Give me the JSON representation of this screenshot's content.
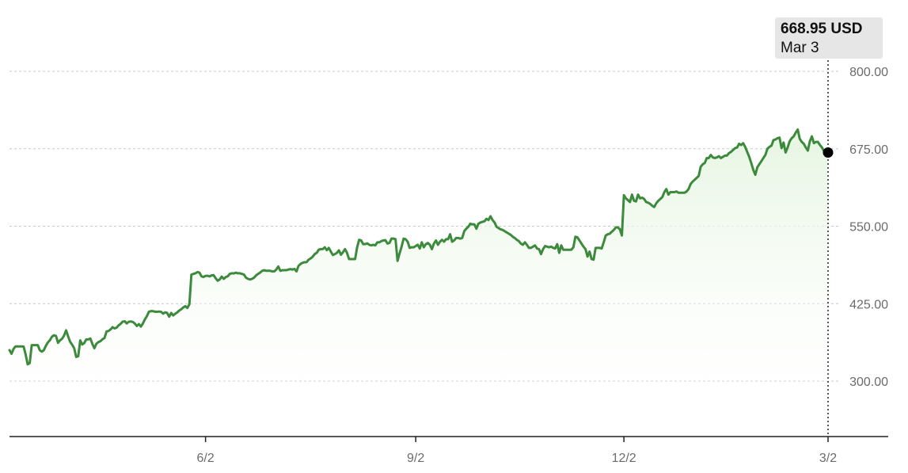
{
  "tooltip": {
    "price": "668.95 USD",
    "date": "Mar 3"
  },
  "colors": {
    "line": "#3c8a3c",
    "fill": "#e9f6e5",
    "grid": "#c8c8c8",
    "marker": "#000000"
  },
  "chart_data": {
    "type": "area",
    "title": "",
    "xlabel": "",
    "ylabel": "",
    "ylim": [
      240,
      840
    ],
    "yticks": [
      300,
      425,
      550,
      675,
      800
    ],
    "ytick_labels": [
      "300.00",
      "425.00",
      "550.00",
      "675.00",
      "800.00"
    ],
    "xticks": [
      {
        "label": "6/2",
        "index": 97
      },
      {
        "label": "9/2",
        "index": 201
      },
      {
        "label": "12/2",
        "index": 304
      },
      {
        "label": "3/2",
        "index": 405
      }
    ],
    "grid": true,
    "legend": "none",
    "highlight": {
      "index": 405,
      "value": 668.95,
      "label": "Mar 3"
    },
    "x": [
      0,
      1,
      2,
      3,
      4,
      5,
      6,
      7,
      8,
      9,
      10,
      11,
      12,
      13,
      14,
      15,
      16,
      17,
      18,
      19,
      20,
      21,
      22,
      23,
      24,
      25,
      26,
      27,
      28,
      29,
      30,
      31,
      32,
      33,
      34,
      35,
      36,
      37,
      38,
      39,
      40,
      41,
      42,
      43,
      44,
      45,
      46,
      47,
      48,
      49,
      50,
      51,
      52,
      53,
      54,
      55,
      56,
      57,
      58,
      59,
      60,
      61,
      62,
      63,
      64,
      65,
      66,
      67,
      68,
      69,
      70,
      71,
      72,
      73,
      74,
      75,
      76,
      77,
      78,
      79,
      80,
      81,
      82,
      83,
      84,
      85,
      86,
      87,
      88,
      89,
      90,
      91,
      92,
      93,
      94,
      95,
      96,
      97,
      98,
      99,
      100,
      101,
      102,
      103,
      104,
      105,
      106,
      107,
      108,
      109,
      110,
      111,
      112,
      113,
      114,
      115,
      116,
      117,
      118,
      119,
      120,
      121,
      122,
      123,
      124,
      125,
      126,
      127,
      128,
      129,
      130,
      131,
      132,
      133,
      134,
      135,
      136,
      137,
      138,
      139,
      140,
      141,
      142,
      143,
      144,
      145,
      146,
      147,
      148,
      149,
      150,
      151,
      152,
      153,
      154,
      155,
      156,
      157,
      158,
      159,
      160,
      161,
      162,
      163,
      164,
      165,
      166,
      167,
      168,
      169,
      170,
      171,
      172,
      173,
      174,
      175,
      176,
      177,
      178,
      179,
      180,
      181,
      182,
      183,
      184,
      185,
      186,
      187,
      188,
      189,
      190,
      191,
      192,
      193,
      194,
      195,
      196,
      197,
      198,
      199,
      200,
      201,
      202,
      203,
      204,
      205,
      206,
      207,
      208,
      209,
      210,
      211,
      212,
      213,
      214,
      215,
      216,
      217,
      218,
      219,
      220,
      221,
      222,
      223,
      224,
      225,
      226,
      227,
      228,
      229,
      230,
      231,
      232,
      233,
      234,
      235,
      236,
      237,
      238,
      239,
      240,
      241,
      242,
      243,
      244,
      245,
      246,
      247,
      248,
      249,
      250,
      251,
      252,
      253,
      254,
      255,
      256,
      257,
      258,
      259,
      260,
      261,
      262,
      263,
      264,
      265,
      266,
      267,
      268,
      269,
      270,
      271,
      272,
      273,
      274,
      275,
      276,
      277,
      278,
      279,
      280,
      281,
      282,
      283,
      284,
      285,
      286,
      287,
      288,
      289,
      290,
      291,
      292,
      293,
      294,
      295,
      296,
      297,
      298,
      299,
      300,
      301,
      302,
      303,
      304,
      305,
      306,
      307,
      308,
      309,
      310,
      311,
      312,
      313,
      314,
      315,
      316,
      317,
      318,
      319,
      320,
      321,
      322,
      323,
      324,
      325,
      326,
      327,
      328,
      329,
      330,
      331,
      332,
      333,
      334,
      335,
      336,
      337,
      338,
      339,
      340,
      341,
      342,
      343,
      344,
      345,
      346,
      347,
      348,
      349,
      350,
      351,
      352,
      353,
      354,
      355,
      356,
      357,
      358,
      359,
      360,
      361,
      362,
      363,
      364,
      365,
      366,
      367,
      368,
      369,
      370,
      371,
      372,
      373,
      374,
      375,
      376,
      377,
      378,
      379,
      380,
      381,
      382,
      383,
      384,
      385,
      386,
      387,
      388,
      389,
      390,
      391,
      392,
      393,
      394,
      395,
      396,
      397,
      398,
      399,
      400,
      401,
      402,
      403,
      404,
      405
    ],
    "series": [
      {
        "values": [
          350.0,
          344.0,
          352.0,
          356.0,
          356.0,
          356.0,
          356.0,
          355.71,
          342.69,
          327.0,
          328.96,
          358.0,
          358.0,
          358.0,
          358.0,
          349.77,
          347.48,
          350.0,
          357.0,
          362.47,
          366.0,
          371.65,
          374.0,
          373.0,
          361.7,
          365.84,
          368.4,
          373.42,
          382.0,
          372.26,
          363.42,
          358.69,
          353.13,
          339.0,
          340.0,
          365.69,
          359.0,
          361.5,
          367.27,
          367.26,
          368.74,
          360.0,
          353.0,
          360.26,
          362.96,
          364.35,
          367.52,
          369.5,
          380.0,
          381.0,
          383.33,
          387.0,
          385.0,
          386.32,
          390.0,
          392.47,
          396.0,
          396.48,
          393.0,
          395.81,
          396.22,
          395.5,
          393.0,
          389.0,
          392.0,
          388.0,
          393.0,
          399.66,
          405.0,
          412.0,
          413.0,
          412.93,
          412.0,
          411.81,
          412.28,
          411.81,
          408.86,
          411.0,
          410.0,
          404.0,
          410.0,
          406.0,
          408.66,
          410.93,
          414.0,
          416.0,
          418.86,
          421.0,
          418.0,
          424.0,
          472.0,
          473.0,
          474.0,
          476.0,
          475.0,
          469.0,
          468.0,
          469.78,
          470.0,
          469.0,
          470.51,
          471.0,
          466.0,
          462.0,
          464.0,
          468.62,
          465.0,
          467.81,
          469.26,
          473.0,
          474.0,
          473.77,
          475.0,
          474.0,
          474.0,
          473.0,
          472.0,
          467.0,
          465.0,
          464.0,
          465.0,
          467.0,
          470.58,
          473.0,
          475.0,
          478.0,
          479.0,
          478.0,
          478.0,
          478.03,
          477.0,
          477.17,
          480.0,
          485.0,
          478.0,
          479.0,
          479.0,
          479.0,
          480.0,
          480.78,
          480.0,
          481.0,
          477.0,
          486.0,
          489.0,
          491.0,
          491.84,
          492.0,
          496.0,
          498.0,
          500.72,
          505.0,
          507.0,
          512.0,
          513.0,
          513.0,
          516.0,
          511.27,
          515.0,
          509.0,
          503.55,
          505.0,
          507.0,
          511.0,
          504.0,
          508.0,
          513.0,
          507.0,
          497.0,
          497.0,
          497.0,
          497.0,
          516.0,
          528.0,
          527.0,
          521.0,
          521.0,
          522.41,
          520.0,
          519.0,
          520.0,
          519.0,
          524.0,
          524.0,
          526.0,
          527.0,
          527.5,
          522.0,
          523.0,
          530.0,
          530.0,
          529.0,
          494.0,
          506.0,
          517.0,
          530.0,
          529.0,
          525.0,
          515.0,
          516.0,
          516.0,
          518.0,
          520.0,
          514.0,
          524.0,
          516.0,
          521.0,
          523.0,
          520.0,
          513.0,
          522.0,
          527.0,
          520.0,
          525.0,
          528.0,
          525.0,
          529.0,
          529.0,
          537.0,
          525.0,
          527.0,
          531.0,
          531.0,
          530.0,
          531.0,
          542.0,
          546.0,
          549.0,
          554.0,
          553.0,
          553.0,
          546.0,
          554.0,
          556.0,
          557.0,
          558.0,
          562.0,
          560.0,
          566.0,
          560.0,
          556.0,
          549.0,
          547.0,
          545.0,
          544.0,
          542.0,
          540.0,
          538.0,
          536.0,
          533.0,
          531.0,
          528.0,
          526.0,
          522.0,
          520.0,
          524.0,
          520.0,
          515.0,
          515.0,
          517.0,
          519.0,
          514.0,
          513.0,
          505.0,
          513.0,
          518.0,
          517.0,
          516.0,
          517.0,
          515.0,
          514.0,
          521.0,
          507.0,
          519.0,
          512.0,
          512.0,
          512.0,
          512.0,
          512.0,
          516.0,
          533.0,
          532.0,
          527.0,
          522.0,
          517.0,
          513.0,
          501.0,
          509.0,
          497.0,
          496.0,
          515.0,
          515.0,
          515.0,
          514.0,
          524.0,
          535.0,
          537.0,
          538.0,
          541.0,
          544.0,
          548.0,
          548.0,
          545.0,
          535.0,
          600.0,
          595.0,
          592.0,
          589.0,
          601.0,
          591.0,
          590.0,
          601.0,
          595.0,
          596.0,
          594.0,
          589.0,
          588.0,
          586.0,
          583.0,
          581.0,
          587.0,
          591.0,
          594.0,
          597.0,
          605.0,
          610.0,
          601.0,
          605.0,
          605.0,
          605.0,
          606.0,
          604.0,
          604.0,
          604.0,
          604.0,
          606.0,
          610.0,
          618.0,
          622.0,
          625.0,
          628.0,
          631.0,
          646.0,
          650.0,
          652.0,
          660.0,
          660.0,
          665.0,
          661.0,
          660.0,
          661.0,
          663.0,
          660.0,
          662.0,
          664.0,
          664.0,
          668.0,
          670.0,
          673.0,
          676.0,
          677.0,
          683.0,
          681.0,
          684.0,
          678.0,
          670.0,
          662.0,
          652.0,
          641.0,
          633.0,
          645.0,
          650.0,
          655.0,
          660.0,
          665.0,
          675.0,
          678.0,
          680.0,
          689.0,
          690.0,
          692.0,
          693.0,
          676.0,
          685.0,
          669.0,
          677.0,
          687.0,
          692.0,
          695.0,
          701.0,
          706.0,
          691.0,
          686.0,
          683.0,
          677.0,
          672.0,
          687.0,
          695.0,
          684.0,
          686.0,
          686.0,
          681.0,
          677.0,
          671.0,
          671.0,
          668.95
        ]
      }
    ]
  }
}
